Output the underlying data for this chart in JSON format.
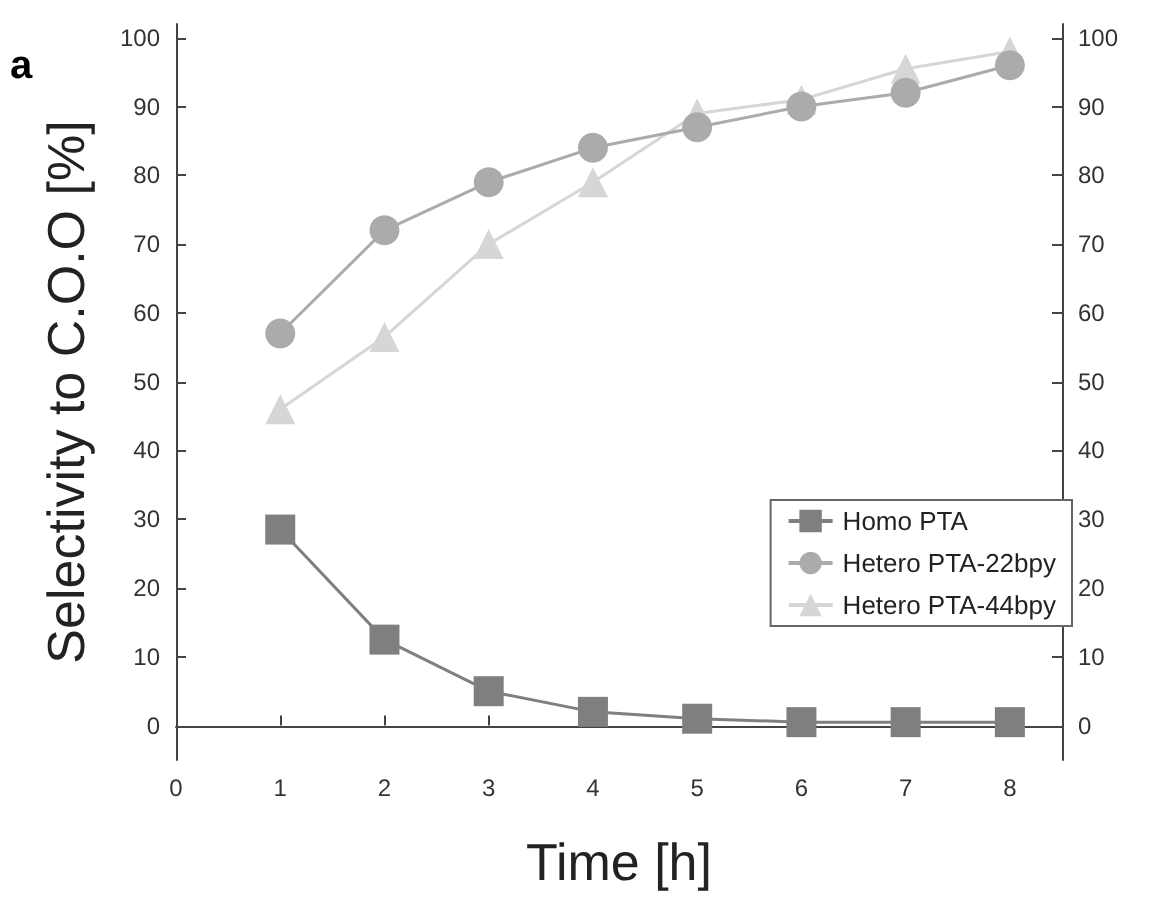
{
  "chart_data": {
    "type": "line",
    "xlabel": "Time [h]",
    "ylabel": "Selectivity to C.O.O [%]",
    "annotations": [
      "a"
    ],
    "x": [
      1,
      2,
      3,
      4,
      5,
      6,
      7,
      8
    ],
    "series": [
      {
        "name": "Homo PTA",
        "color": "#7f7f7f",
        "marker": "square",
        "values": [
          28.5,
          12.5,
          5,
          2,
          1,
          0.5,
          0.5,
          0.5
        ]
      },
      {
        "name": "Hetero PTA-22bpy",
        "color": "#ababab",
        "marker": "circle",
        "values": [
          57,
          72,
          79,
          84,
          87,
          90,
          92,
          96
        ]
      },
      {
        "name": "Hetero PTA-44bpy",
        "color": "#d6d6d6",
        "marker": "triangle",
        "values": [
          46,
          56.5,
          70,
          79,
          89,
          91,
          95.5,
          98
        ]
      }
    ],
    "xlim": [
      0,
      8.5
    ],
    "xticks": [
      0,
      1,
      2,
      3,
      4,
      5,
      6,
      7,
      8
    ],
    "ylim": [
      -5,
      102
    ],
    "yticks": [
      0,
      10,
      20,
      30,
      40,
      50,
      60,
      70,
      80,
      90,
      100
    ],
    "y2lim": [
      -5,
      102
    ],
    "y2ticks": [
      0,
      10,
      20,
      30,
      40,
      50,
      60,
      70,
      80,
      90,
      100
    ],
    "legend": "right",
    "grid": false
  }
}
